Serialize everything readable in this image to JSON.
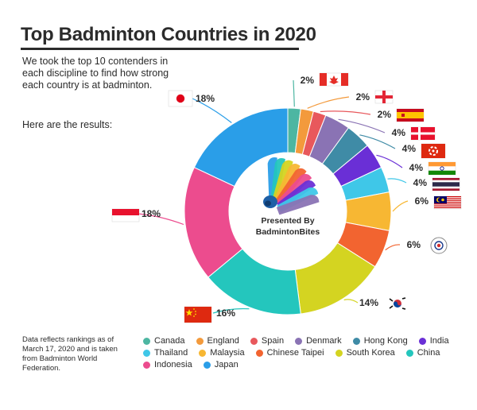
{
  "header": {
    "title": "Top Badminton Countries in 2020",
    "intro": "We took the top 10 contenders in each discipline to find how strong each country is at badminton.",
    "results": "Here are the results:"
  },
  "center": {
    "line1": "Presented By",
    "line2": "BadmintonBites"
  },
  "footnote": "Data reflects rankings as of March 17, 2020 and is taken from Badminton World Federation.",
  "chart_data": {
    "type": "pie",
    "variant": "donut",
    "unit": "%",
    "categories": [
      "Canada",
      "England",
      "Spain",
      "Denmark",
      "Hong Kong",
      "India",
      "Thailand",
      "Malaysia",
      "Chinese Taipei",
      "South Korea",
      "China",
      "Indonesia",
      "Japan"
    ],
    "values": [
      2,
      2,
      2,
      4,
      4,
      4,
      4,
      6,
      6,
      14,
      16,
      18,
      18
    ],
    "labels": [
      "2%",
      "2%",
      "2%",
      "4%",
      "4%",
      "4%",
      "4%",
      "6%",
      "6%",
      "14%",
      "16%",
      "18%",
      "18%"
    ],
    "colors": [
      "#4db6a2",
      "#f39a3c",
      "#e8585c",
      "#8a73b4",
      "#3f8ba6",
      "#6a2fd6",
      "#3fc7e8",
      "#f7b733",
      "#f26430",
      "#d4d421",
      "#24c6bd",
      "#ec4c8e",
      "#2a9ee8"
    ],
    "legend_placement": "bottom"
  },
  "icons": [
    "shuttlecock-icon",
    "flag-canada-icon",
    "flag-england-icon",
    "flag-spain-icon",
    "flag-denmark-icon",
    "flag-hong-kong-icon",
    "flag-india-icon",
    "flag-thailand-icon",
    "flag-malaysia-icon",
    "flag-chinese-taipei-icon",
    "flag-south-korea-icon",
    "flag-china-icon",
    "flag-indonesia-icon",
    "flag-japan-icon"
  ]
}
